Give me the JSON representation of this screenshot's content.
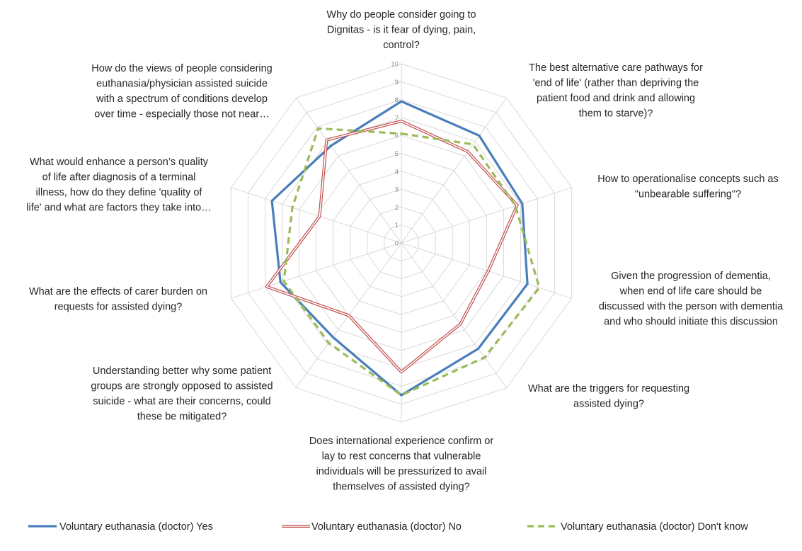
{
  "chart_data": {
    "type": "radar",
    "title": "",
    "r_range": [
      0,
      10
    ],
    "r_ticks": [
      "0",
      "1",
      "2",
      "3",
      "4",
      "5",
      "6",
      "7",
      "8",
      "9",
      "10"
    ],
    "grid": true,
    "legend_position": "bottom",
    "categories": [
      [
        "Why do people consider going to",
        "Dignitas - is it fear of dying, pain,",
        "control?"
      ],
      [
        "The best alternative care pathways for",
        "'end of life' (rather than depriving the",
        "patient food and drink and allowing",
        "them to starve)?"
      ],
      [
        "How to operationalise concepts such as",
        "\"unbearable suffering\"?"
      ],
      [
        "Given the progression of dementia,",
        "when end of life care should be",
        "discussed with the person with dementia",
        "and who should initiate this discussion"
      ],
      [
        "What are the triggers for requesting",
        "assisted dying?"
      ],
      [
        "Does international experience confirm or",
        "lay to rest concerns that vulnerable",
        "individuals will be pressurized to avail",
        "themselves of assisted dying?"
      ],
      [
        "Understanding better why some patient",
        "groups are strongly opposed to assisted",
        "suicide - what are their concerns, could",
        "these be mitigated?"
      ],
      [
        "What are the effects of carer burden on",
        "requests for assisted dying?"
      ],
      [
        "What would enhance a person’s quality",
        "of life after diagnosis of a terminal",
        "illness, how do they define 'quality of",
        "life' and what are factors they take into…"
      ],
      [
        "How do the views of people considering",
        "euthanasia/physician assisted suicide",
        "with a spectrum of conditions develop",
        "over time - especially those not near…"
      ]
    ],
    "series": [
      {
        "name": "Voluntary euthanasia (doctor) Yes",
        "color": "#4a7ebb",
        "style": "solid",
        "values": [
          7.9,
          7.4,
          7.1,
          7.4,
          7.3,
          8.5,
          6.5,
          7.1,
          7.6,
          6.7
        ]
      },
      {
        "name": "Voluntary euthanasia (doctor) No",
        "color": "#c0504d",
        "style": "double",
        "values": [
          6.8,
          6.3,
          6.8,
          5.1,
          5.6,
          7.2,
          5.0,
          7.9,
          4.8,
          7.1
        ]
      },
      {
        "name": "Voluntary euthanasia (doctor) Don't know",
        "color": "#9bbb59",
        "style": "dashed",
        "values": [
          6.1,
          6.8,
          6.7,
          8.1,
          7.9,
          8.5,
          6.9,
          6.9,
          6.4,
          7.9
        ]
      }
    ]
  }
}
